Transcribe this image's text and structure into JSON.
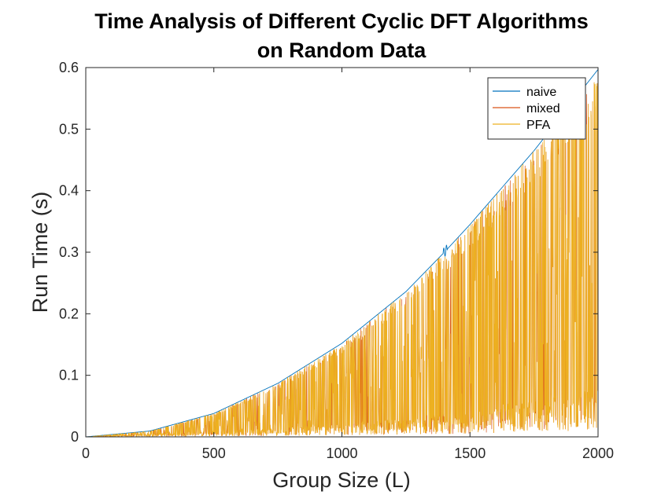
{
  "chart_data": {
    "type": "line",
    "title_lines": [
      "Time Analysis of Different Cyclic DFT Algorithms",
      "on Random Data"
    ],
    "xlabel": "Group Size (L)",
    "ylabel": "Run Time (s)",
    "xlim": [
      0,
      2000
    ],
    "ylim": [
      0,
      0.6
    ],
    "xticks": [
      0,
      500,
      1000,
      1500,
      2000
    ],
    "yticks": [
      0,
      0.1,
      0.2,
      0.3,
      0.4,
      0.5,
      0.6
    ],
    "xtick_labels": [
      "0",
      "500",
      "1000",
      "1500",
      "2000"
    ],
    "ytick_labels": [
      "0",
      "0.1",
      "0.2",
      "0.3",
      "0.4",
      "0.5",
      "0.6"
    ],
    "grid": false,
    "legend_placement": "top-right",
    "x_step": 1,
    "series": [
      {
        "name": "naive",
        "color": "#0072BD",
        "envelope_x": [
          0,
          250,
          500,
          750,
          1000,
          1250,
          1400,
          1500,
          1750,
          2000
        ],
        "envelope_y": [
          0,
          0.0095,
          0.038,
          0.087,
          0.152,
          0.236,
          0.3,
          0.345,
          0.465,
          0.597
        ]
      },
      {
        "name": "mixed",
        "color": "#D95319",
        "envelope_x": [
          0,
          500,
          1000,
          1500,
          2000
        ],
        "envelope_y": [
          0,
          0.005,
          0.012,
          0.022,
          0.045
        ]
      },
      {
        "name": "PFA",
        "color": "#EDB120",
        "envelope_x": [
          0,
          500,
          1000,
          1500,
          2000
        ],
        "envelope_y": [
          0,
          0.006,
          0.014,
          0.026,
          0.05
        ]
      }
    ]
  }
}
